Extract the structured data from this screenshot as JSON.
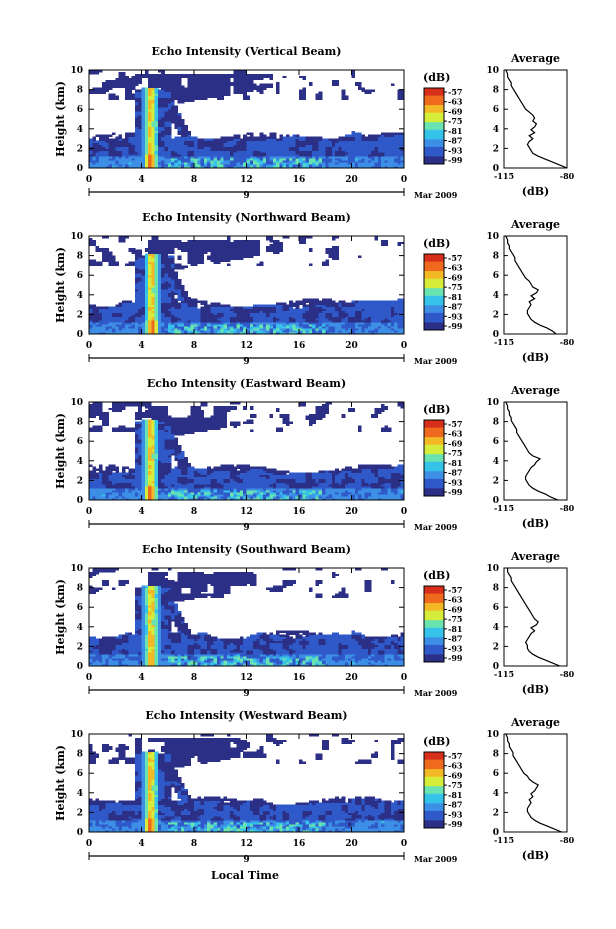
{
  "figure": {
    "date_label": "Mar 2009",
    "day_label": "9",
    "xlabel": "Local Time",
    "colorbar_unit": "(dB)",
    "colorbar_ticks": [
      "-57",
      "-63",
      "-69",
      "-75",
      "-81",
      "-87",
      "-93",
      "-99"
    ],
    "colors": [
      "#2b2f86",
      "#2f58c8",
      "#3d8fe6",
      "#35c3ea",
      "#69e3b0",
      "#d6ec3b",
      "#f3b826",
      "#ef6a1c",
      "#d62f1b"
    ]
  },
  "chart_data": [
    {
      "type": "heatmap",
      "title": "Echo Intensity (Vertical Beam)",
      "ylabel": "Height (km)",
      "xlim": [
        0,
        24
      ],
      "ylim": [
        0,
        10
      ],
      "x_ticks": [
        "0",
        "4",
        "8",
        "12",
        "16",
        "20",
        "0"
      ],
      "y_ticks": [
        "0",
        "2",
        "4",
        "6",
        "8",
        "10"
      ],
      "color_unit": "dB",
      "color_range": [
        -99,
        -57
      ],
      "profile": {
        "title": "Average",
        "xlabel": "(dB)",
        "xlim": [
          -115,
          -80
        ],
        "x_ticks": [
          "-115",
          "-80"
        ],
        "y_ticks": [
          "0",
          "2",
          "4",
          "6",
          "8",
          "10"
        ],
        "height": [
          0.0,
          0.3,
          0.6,
          0.9,
          1.2,
          1.5,
          1.8,
          2.1,
          2.4,
          2.7,
          3.0,
          3.3,
          3.6,
          3.9,
          4.2,
          4.5,
          4.8,
          5.1,
          5.4,
          5.7,
          6.0,
          6.3,
          6.6,
          6.9,
          7.2,
          7.5,
          7.8,
          8.1,
          8.4,
          8.7,
          9.0,
          9.3,
          9.6,
          10.0
        ],
        "value": [
          -80,
          -84,
          -88,
          -92,
          -96,
          -99,
          -100,
          -101,
          -102,
          -101,
          -99,
          -101,
          -98,
          -100,
          -98,
          -97,
          -99,
          -98,
          -99,
          -101,
          -103,
          -104,
          -105,
          -106,
          -107,
          -108,
          -109,
          -110,
          -111,
          -111,
          -112,
          -113,
          -113,
          -114
        ]
      }
    },
    {
      "type": "heatmap",
      "title": "Echo Intensity (Northward Beam)",
      "ylabel": "Height (km)",
      "xlim": [
        0,
        24
      ],
      "ylim": [
        0,
        10
      ],
      "x_ticks": [
        "0",
        "4",
        "8",
        "12",
        "16",
        "20",
        "0"
      ],
      "y_ticks": [
        "0",
        "2",
        "4",
        "6",
        "8",
        "10"
      ],
      "color_unit": "dB",
      "color_range": [
        -99,
        -57
      ],
      "profile": {
        "title": "Average",
        "xlabel": "(dB)",
        "xlim": [
          -115,
          -80
        ],
        "x_ticks": [
          "-115",
          "-80"
        ],
        "y_ticks": [
          "0",
          "2",
          "4",
          "6",
          "8",
          "10"
        ],
        "height": [
          0.0,
          0.3,
          0.6,
          0.9,
          1.2,
          1.5,
          1.8,
          2.1,
          2.4,
          2.7,
          3.0,
          3.3,
          3.6,
          3.9,
          4.2,
          4.5,
          4.8,
          5.1,
          5.4,
          5.7,
          6.0,
          6.3,
          6.6,
          6.9,
          7.2,
          7.5,
          7.8,
          8.1,
          8.4,
          8.7,
          9.0,
          9.3,
          9.6,
          10.0
        ],
        "value": [
          -86,
          -88,
          -91,
          -95,
          -98,
          -100,
          -101,
          -102,
          -102,
          -101,
          -100,
          -101,
          -98,
          -100,
          -97,
          -96,
          -99,
          -100,
          -101,
          -103,
          -104,
          -105,
          -106,
          -107,
          -108,
          -109,
          -109,
          -110,
          -111,
          -112,
          -112,
          -113,
          -113,
          -114
        ]
      }
    },
    {
      "type": "heatmap",
      "title": "Echo Intensity (Eastward Beam)",
      "ylabel": "Height (km)",
      "xlim": [
        0,
        24
      ],
      "ylim": [
        0,
        10
      ],
      "x_ticks": [
        "0",
        "4",
        "8",
        "12",
        "16",
        "20",
        "0"
      ],
      "y_ticks": [
        "0",
        "2",
        "4",
        "6",
        "8",
        "10"
      ],
      "color_unit": "dB",
      "color_range": [
        -99,
        -57
      ],
      "profile": {
        "title": "Average",
        "xlabel": "(dB)",
        "xlim": [
          -115,
          -80
        ],
        "x_ticks": [
          "-115",
          "-80"
        ],
        "y_ticks": [
          "0",
          "2",
          "4",
          "6",
          "8",
          "10"
        ],
        "height": [
          0.0,
          0.3,
          0.6,
          0.9,
          1.2,
          1.5,
          1.8,
          2.1,
          2.4,
          2.7,
          3.0,
          3.3,
          3.6,
          3.9,
          4.2,
          4.5,
          4.8,
          5.1,
          5.4,
          5.7,
          6.0,
          6.3,
          6.6,
          6.9,
          7.2,
          7.5,
          7.8,
          8.1,
          8.4,
          8.7,
          9.0,
          9.3,
          9.6,
          10.0
        ],
        "value": [
          -85,
          -89,
          -92,
          -96,
          -99,
          -101,
          -102,
          -103,
          -103,
          -102,
          -101,
          -100,
          -98,
          -97,
          -95,
          -99,
          -101,
          -102,
          -103,
          -104,
          -105,
          -106,
          -107,
          -108,
          -108,
          -109,
          -110,
          -111,
          -111,
          -112,
          -112,
          -113,
          -113,
          -114
        ]
      }
    },
    {
      "type": "heatmap",
      "title": "Echo Intensity (Southward Beam)",
      "ylabel": "Height (km)",
      "xlim": [
        0,
        24
      ],
      "ylim": [
        0,
        10
      ],
      "x_ticks": [
        "0",
        "4",
        "8",
        "12",
        "16",
        "20",
        "0"
      ],
      "y_ticks": [
        "0",
        "2",
        "4",
        "6",
        "8",
        "10"
      ],
      "color_unit": "dB",
      "color_range": [
        -99,
        -57
      ],
      "profile": {
        "title": "Average",
        "xlabel": "(dB)",
        "xlim": [
          -115,
          -80
        ],
        "x_ticks": [
          "-115",
          "-80"
        ],
        "y_ticks": [
          "0",
          "2",
          "4",
          "6",
          "8",
          "10"
        ],
        "height": [
          0.0,
          0.3,
          0.6,
          0.9,
          1.2,
          1.5,
          1.8,
          2.1,
          2.4,
          2.7,
          3.0,
          3.3,
          3.6,
          3.9,
          4.2,
          4.5,
          4.8,
          5.1,
          5.4,
          5.7,
          6.0,
          6.3,
          6.6,
          6.9,
          7.2,
          7.5,
          7.8,
          8.1,
          8.4,
          8.7,
          9.0,
          9.3,
          9.6,
          10.0
        ],
        "value": [
          -84,
          -88,
          -92,
          -96,
          -99,
          -101,
          -102,
          -102,
          -103,
          -102,
          -101,
          -100,
          -98,
          -100,
          -97,
          -96,
          -98,
          -99,
          -100,
          -101,
          -102,
          -103,
          -104,
          -105,
          -106,
          -107,
          -108,
          -109,
          -110,
          -111,
          -111,
          -112,
          -113,
          -113
        ]
      }
    },
    {
      "type": "heatmap",
      "title": "Echo Intensity (Westward Beam)",
      "ylabel": "Height (km)",
      "xlim": [
        0,
        24
      ],
      "ylim": [
        0,
        10
      ],
      "x_ticks": [
        "0",
        "4",
        "8",
        "12",
        "16",
        "20",
        "0"
      ],
      "y_ticks": [
        "0",
        "2",
        "4",
        "6",
        "8",
        "10"
      ],
      "color_unit": "dB",
      "color_range": [
        -99,
        -57
      ],
      "profile": {
        "title": "Average",
        "xlabel": "(dB)",
        "xlim": [
          -115,
          -80
        ],
        "x_ticks": [
          "-115",
          "-80"
        ],
        "y_ticks": [
          "0",
          "2",
          "4",
          "6",
          "8",
          "10"
        ],
        "height": [
          0.0,
          0.3,
          0.6,
          0.9,
          1.2,
          1.5,
          1.8,
          2.1,
          2.4,
          2.7,
          3.0,
          3.3,
          3.6,
          3.9,
          4.2,
          4.5,
          4.8,
          5.1,
          5.4,
          5.7,
          6.0,
          6.3,
          6.6,
          6.9,
          7.2,
          7.5,
          7.8,
          8.1,
          8.4,
          8.7,
          9.0,
          9.3,
          9.6,
          10.0
        ],
        "value": [
          -83,
          -87,
          -91,
          -95,
          -98,
          -100,
          -101,
          -102,
          -102,
          -101,
          -100,
          -101,
          -99,
          -100,
          -98,
          -97,
          -96,
          -99,
          -101,
          -102,
          -104,
          -105,
          -106,
          -107,
          -108,
          -109,
          -110,
          -110,
          -111,
          -112,
          -112,
          -113,
          -113,
          -114
        ]
      }
    }
  ]
}
